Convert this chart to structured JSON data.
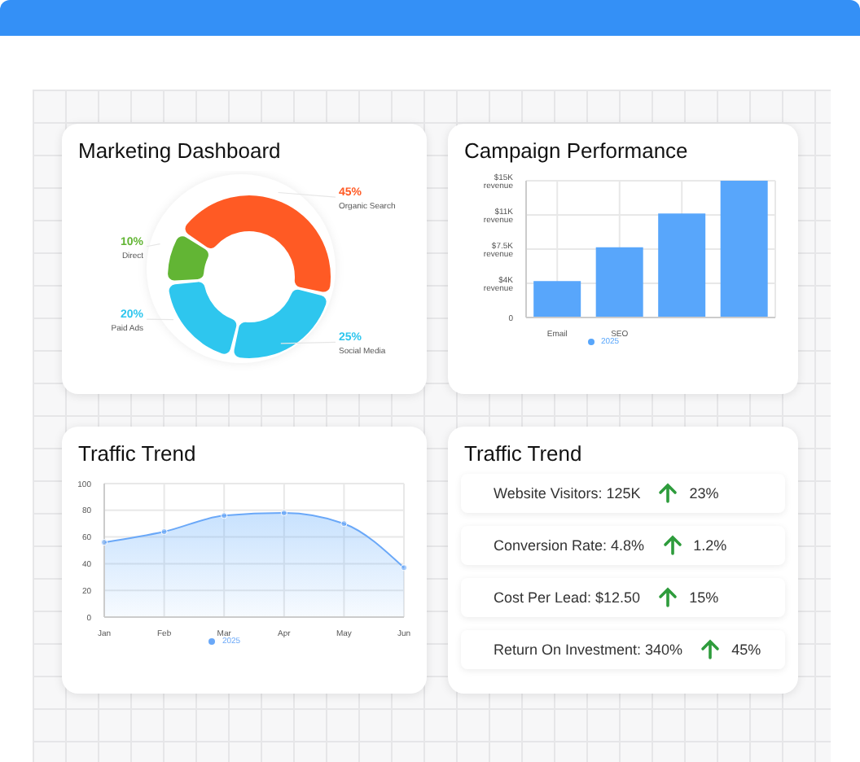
{
  "chart_data": [
    {
      "type": "donut",
      "title": "Marketing Dashboard",
      "categories": [
        "Organic Search",
        "Social Media",
        "Paid Ads",
        "Direct"
      ],
      "values": [
        45,
        25,
        20,
        10
      ],
      "colors": [
        "#ff5a24",
        "#2ec6ee",
        "#2ec6ee",
        "#62b534"
      ],
      "value_labels": [
        "45%",
        "25%",
        "20%",
        "10%"
      ],
      "legend": false
    },
    {
      "type": "bar",
      "title": "Campaign Performance",
      "categories": [
        "Email",
        "SEO",
        null,
        null
      ],
      "series": [
        {
          "name": "2025",
          "color": "#58a6fb",
          "values": [
            4000,
            7700,
            11400,
            15000
          ]
        }
      ],
      "ylim": [
        0,
        15000
      ],
      "yticks": [
        0,
        {
          "value": 3750,
          "label": "$4K revenue"
        },
        {
          "value": 7500,
          "label": "$7.5K revenue"
        },
        {
          "value": 11250,
          "label": "$11K revenue"
        },
        {
          "value": 15000,
          "label": "$15K revenue"
        }
      ],
      "grid": true,
      "legend": "bottom"
    },
    {
      "type": "area",
      "title": "Traffic Trend",
      "categories": [
        "Jan",
        "Feb",
        "Mar",
        "Apr",
        "May",
        "Jun"
      ],
      "series": [
        {
          "name": "2025",
          "color": "#6aa8f8",
          "values": [
            56,
            64,
            76,
            78,
            70,
            37
          ]
        }
      ],
      "ylim": [
        0,
        100
      ],
      "yticks": [
        0,
        20,
        40,
        60,
        80,
        100
      ],
      "grid": true,
      "legend": "bottom",
      "marker": "circle"
    },
    {
      "type": "other",
      "title": "Traffic Trend",
      "annotations": [
        "Website Visitors: 125K",
        "23%",
        "Conversion Rate: 4.8%",
        "1.2%",
        "Cost Per Lead: $12.50",
        "15%",
        "Return On Investment: 340%",
        "45%"
      ]
    }
  ]
}
